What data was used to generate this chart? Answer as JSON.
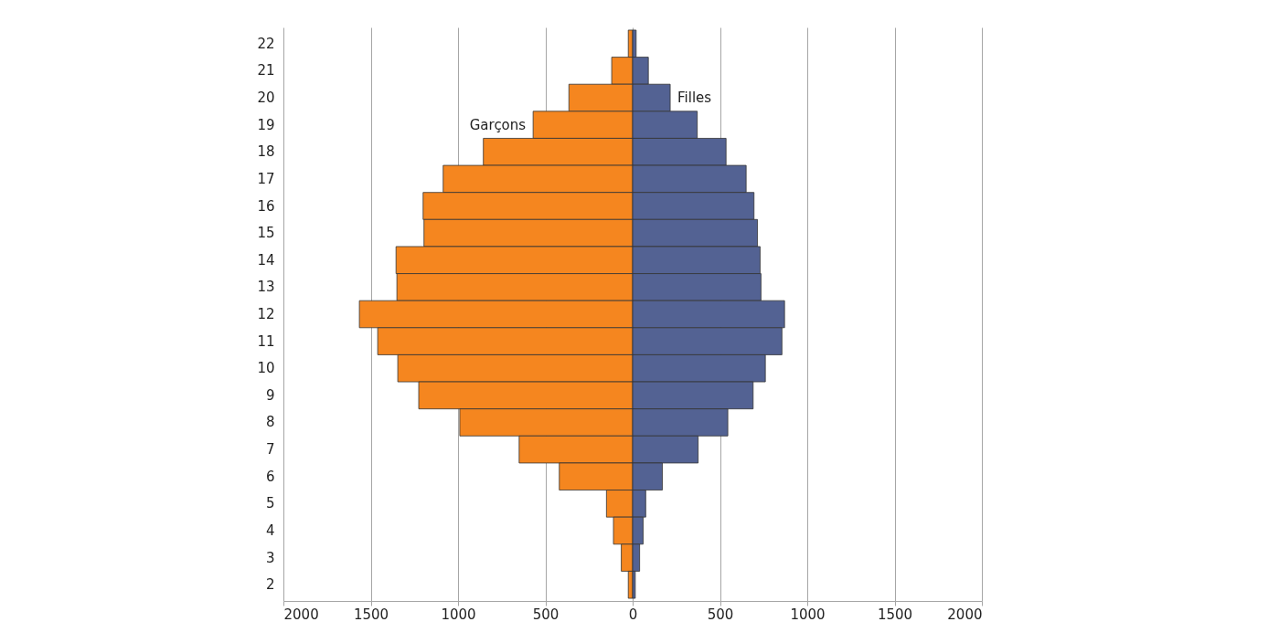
{
  "chart_data": {
    "type": "bar",
    "orientation": "horizontal",
    "stacked": true,
    "categories": [
      "22",
      "21",
      "20",
      "19",
      "18",
      "17",
      "16",
      "15",
      "14",
      "13",
      "12",
      "11",
      "10",
      "9",
      "8",
      "7",
      "6",
      "5",
      "4",
      "3",
      "2"
    ],
    "series": [
      {
        "name": "Garçons",
        "color": "#f5861f",
        "values": [
          -25,
          -120,
          -365,
          -570,
          -855,
          -1085,
          -1200,
          -1195,
          -1355,
          -1350,
          -1565,
          -1460,
          -1345,
          -1225,
          -990,
          -650,
          -420,
          -150,
          -110,
          -65,
          -25
        ]
      },
      {
        "name": "Filles",
        "color": "#536293",
        "values": [
          20,
          90,
          215,
          370,
          535,
          650,
          695,
          715,
          730,
          735,
          870,
          855,
          760,
          690,
          545,
          375,
          170,
          75,
          60,
          40,
          15
        ]
      }
    ],
    "xlim": [
      -2000,
      2000
    ],
    "xticks": [
      {
        "value": -2000,
        "label": "2000"
      },
      {
        "value": -1500,
        "label": "1500"
      },
      {
        "value": -1000,
        "label": "1000"
      },
      {
        "value": -500,
        "label": "500"
      },
      0,
      500,
      1000,
      1500,
      2000
    ],
    "grid": "x",
    "legend": false
  }
}
